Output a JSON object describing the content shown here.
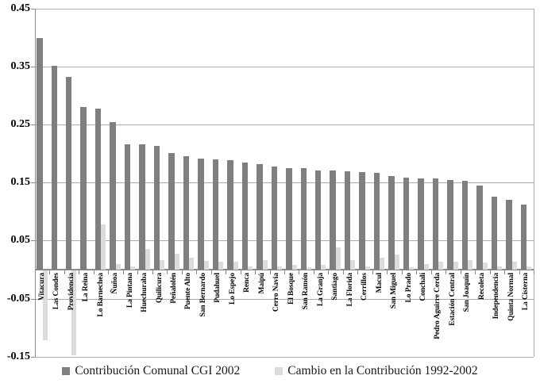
{
  "chart_data": {
    "type": "bar",
    "title": "",
    "xlabel": "",
    "ylabel": "",
    "grid": true,
    "legend_position": "bottom",
    "ylim": [
      -0.15,
      0.45
    ],
    "yticks": [
      0.45,
      0.35,
      0.25,
      0.15,
      0.05,
      -0.05,
      -0.15
    ],
    "ytick_labels": [
      "0.45",
      "0.35",
      "0.25",
      "0.15",
      "0.05",
      "-0.05",
      "-0.15"
    ],
    "categories": [
      "Vitacura",
      "Las Condes",
      "Providencia",
      "La Reina",
      "Lo Barnechea",
      "Ñuñoa",
      "La Pintana",
      "Huechuraba",
      "Quilicura",
      "Peñalolén",
      "Puente Alto",
      "San Bernardo",
      "Pudahuel",
      "Lo Espejo",
      "Renca",
      "Maipú",
      "Cerro Navia",
      "El Bosque",
      "San Ramón",
      "La Granja",
      "Santiago",
      "La Florida",
      "Cerrillos",
      "Macul",
      "San Miguel",
      "Lo Prado",
      "Conchalí",
      "Pedro Aguirre Cerda",
      "Estación Central",
      "San Joaquín",
      "Recoleta",
      "Independencia",
      "Quinta Normal",
      "La Cisterna"
    ],
    "series": [
      {
        "name": "Contribución Comunal CGI 2002",
        "color": "#7f7f7f",
        "values": [
          0.4,
          0.352,
          0.333,
          0.281,
          0.278,
          0.255,
          0.216,
          0.216,
          0.213,
          0.201,
          0.196,
          0.192,
          0.19,
          0.189,
          0.185,
          0.182,
          0.178,
          0.175,
          0.175,
          0.171,
          0.171,
          0.169,
          0.168,
          0.167,
          0.161,
          0.159,
          0.158,
          0.157,
          0.155,
          0.153,
          0.145,
          0.126,
          0.12,
          0.112
        ]
      },
      {
        "name": "Cambio en la Contribución 1992-2002",
        "color": "#dcdcdc",
        "values": [
          -0.12,
          0.0,
          -0.147,
          0.0,
          0.078,
          0.009,
          0.006,
          0.036,
          0.016,
          0.028,
          0.02,
          0.015,
          0.013,
          0.013,
          0.005,
          0.016,
          0.005,
          0.008,
          0.004,
          0.008,
          0.038,
          0.016,
          0.005,
          0.02,
          0.026,
          0.004,
          0.009,
          0.014,
          0.014,
          0.016,
          0.012,
          0.005,
          0.013,
          0.005
        ]
      }
    ],
    "colors": {
      "gridline": "#ababab",
      "zero_axis": "#8c8c8c",
      "axis": "#8c8c8c",
      "text": "#000000",
      "background": "#ffffff"
    }
  }
}
